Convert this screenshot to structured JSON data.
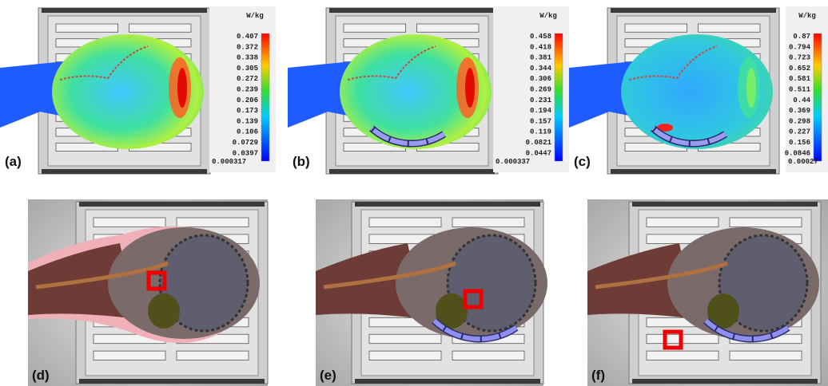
{
  "top_panels": [
    {
      "label": "(a)",
      "unit": "W/kg",
      "scale": [
        "0.407",
        "0.372",
        "0.338",
        "0.305",
        "0.272",
        "0.239",
        "0.206",
        "0.173",
        "0.139",
        "0.106",
        "0.0729",
        "0.0397",
        "0.000317"
      ]
    },
    {
      "label": "(b)",
      "unit": "W/kg",
      "scale": [
        "0.458",
        "0.418",
        "0.381",
        "0.344",
        "0.306",
        "0.269",
        "0.231",
        "0.194",
        "0.157",
        "0.119",
        "0.0821",
        "0.0447",
        "0.000337"
      ]
    },
    {
      "label": "(c)",
      "unit": "W/kg",
      "scale": [
        "0.87",
        "0.794",
        "0.723",
        "0.652",
        "0.581",
        "0.511",
        "0.44",
        "0.369",
        "0.298",
        "0.227",
        "0.156",
        "0.0846",
        "0.00027"
      ]
    }
  ],
  "bottom_panels": [
    {
      "label": "(d)"
    },
    {
      "label": "(e)"
    },
    {
      "label": "(f)"
    }
  ]
}
